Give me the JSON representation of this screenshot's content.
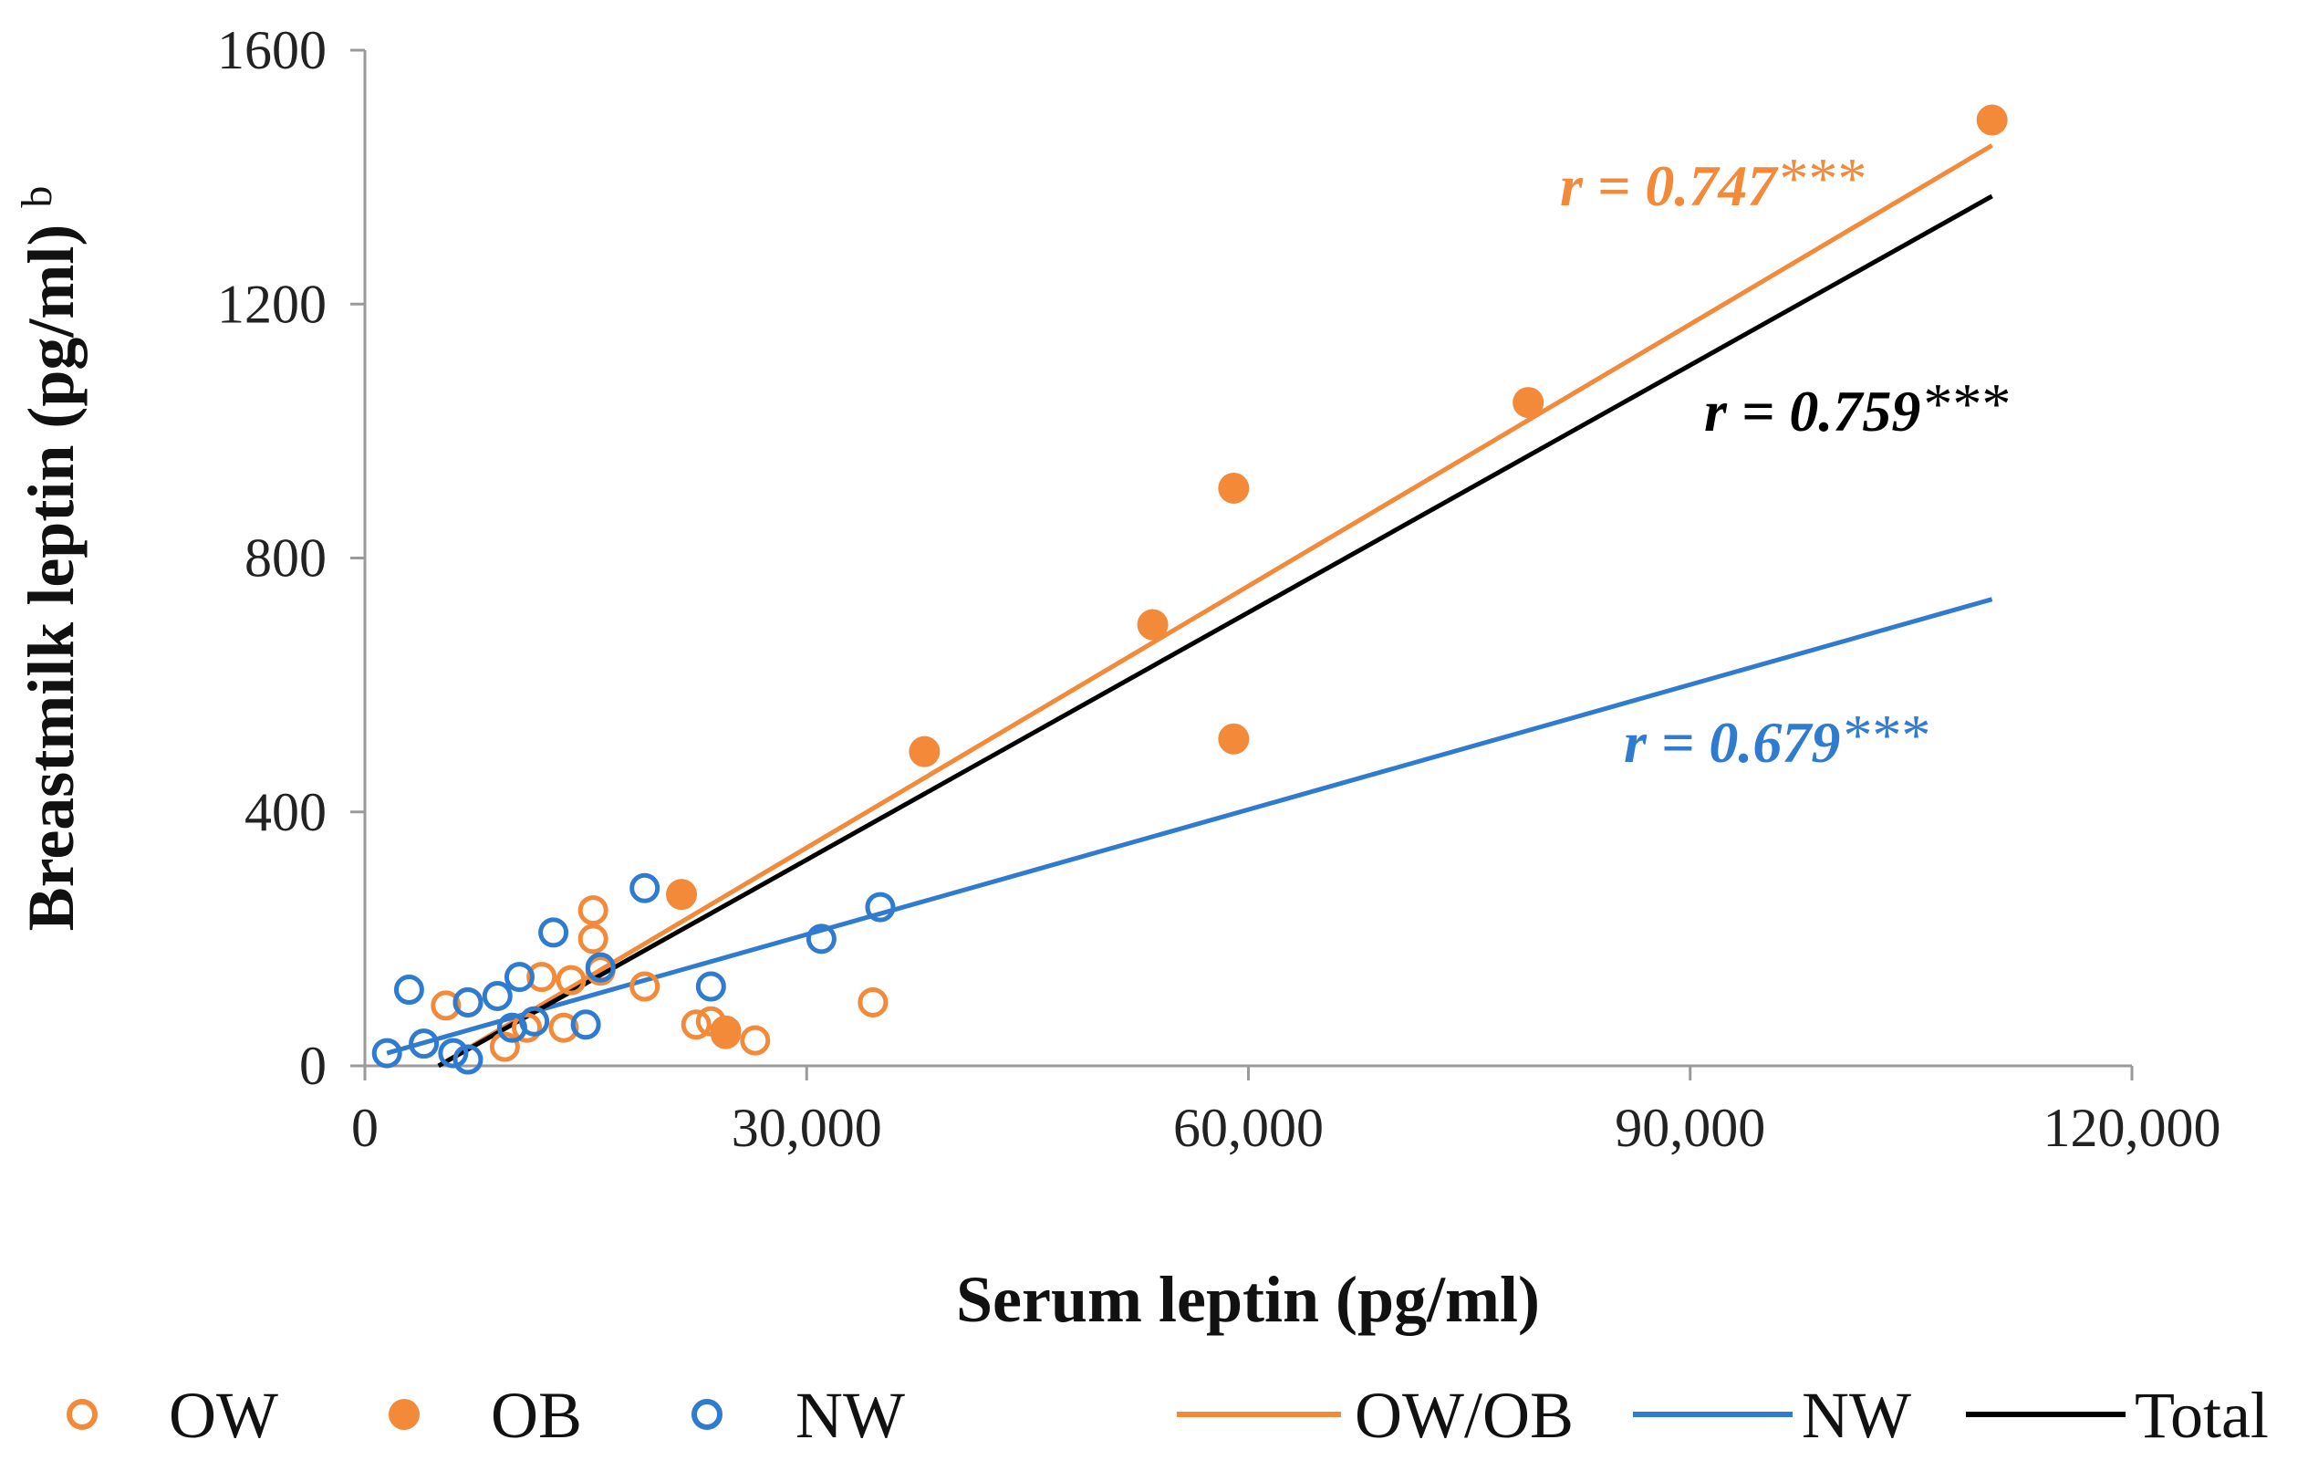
{
  "chart_data": {
    "type": "scatter",
    "title": "",
    "xlabel": "Serum leptin (pg/ml)",
    "ylabel": "Breastmilk leptin (pg/ml)",
    "ylabel_superscript": "b",
    "xlim": [
      0,
      120000
    ],
    "ylim": [
      0,
      1600
    ],
    "x_ticks": [
      0,
      30000,
      60000,
      90000,
      120000
    ],
    "x_tick_labels": [
      "0",
      "30,000",
      "60,000",
      "90,000",
      "120,000"
    ],
    "y_ticks": [
      0,
      400,
      800,
      1200,
      1600
    ],
    "y_tick_labels": [
      "0",
      "400",
      "800",
      "1200",
      "1600"
    ],
    "grid": false,
    "colors": {
      "orange": "#F28A3A",
      "blue": "#2F7BD0",
      "black": "#000000"
    },
    "series": [
      {
        "name": "OW",
        "marker": "open-circle",
        "color": "#F28A3A",
        "points": [
          [
            5500,
            95
          ],
          [
            7000,
            100
          ],
          [
            9500,
            30
          ],
          [
            11000,
            60
          ],
          [
            12000,
            140
          ],
          [
            13500,
            60
          ],
          [
            14000,
            135
          ],
          [
            15500,
            245
          ],
          [
            15500,
            200
          ],
          [
            16000,
            150
          ],
          [
            19000,
            125
          ],
          [
            22500,
            65
          ],
          [
            23500,
            70
          ],
          [
            24500,
            50
          ],
          [
            26500,
            40
          ],
          [
            34500,
            100
          ]
        ]
      },
      {
        "name": "OB",
        "marker": "filled-circle",
        "color": "#F28A3A",
        "points": [
          [
            21500,
            270
          ],
          [
            24500,
            55
          ],
          [
            38000,
            495
          ],
          [
            53500,
            695
          ],
          [
            59000,
            515
          ],
          [
            59000,
            910
          ],
          [
            79000,
            1045
          ],
          [
            110500,
            1490
          ]
        ]
      },
      {
        "name": "NW",
        "marker": "open-circle",
        "color": "#2F7BD0",
        "points": [
          [
            1500,
            20
          ],
          [
            3000,
            120
          ],
          [
            4000,
            35
          ],
          [
            6000,
            20
          ],
          [
            7000,
            10
          ],
          [
            7000,
            100
          ],
          [
            9000,
            110
          ],
          [
            10000,
            60
          ],
          [
            10500,
            140
          ],
          [
            11500,
            70
          ],
          [
            12800,
            210
          ],
          [
            15000,
            65
          ],
          [
            16000,
            155
          ],
          [
            19000,
            280
          ],
          [
            23500,
            125
          ],
          [
            31000,
            200
          ],
          [
            35000,
            250
          ]
        ]
      }
    ],
    "trendlines": [
      {
        "name": "OW/OB",
        "color": "#F28A3A",
        "x": [
          5000,
          110500
        ],
        "y": [
          0,
          1450
        ],
        "label_value": "0.747"
      },
      {
        "name": "NW",
        "color": "#2F7BD0",
        "x": [
          1500,
          110500
        ],
        "y": [
          20,
          735
        ],
        "label_value": "0.679"
      },
      {
        "name": "Total",
        "color": "#000000",
        "x": [
          5000,
          110500
        ],
        "y": [
          0,
          1370
        ],
        "label_value": "0.759"
      }
    ],
    "annotations": {
      "orange_prefix": "r = ",
      "orange_value": "0.747",
      "orange_stars": "***",
      "black_prefix": "r = ",
      "black_value": "0.759",
      "black_stars": "***",
      "blue_prefix": "r = ",
      "blue_value": "0.679",
      "blue_stars": "***"
    },
    "legend": {
      "placement": "bottom",
      "items": [
        {
          "label": "OW",
          "kind": "open-circle",
          "color": "#F28A3A"
        },
        {
          "label": "OB",
          "kind": "filled-circle",
          "color": "#F28A3A"
        },
        {
          "label": "NW",
          "kind": "open-circle",
          "color": "#2F7BD0"
        },
        {
          "label": "OW/OB",
          "kind": "line",
          "color": "#F28A3A"
        },
        {
          "label": "NW",
          "kind": "line",
          "color": "#2F7BD0"
        },
        {
          "label": "Total",
          "kind": "line",
          "color": "#000000"
        }
      ]
    }
  }
}
